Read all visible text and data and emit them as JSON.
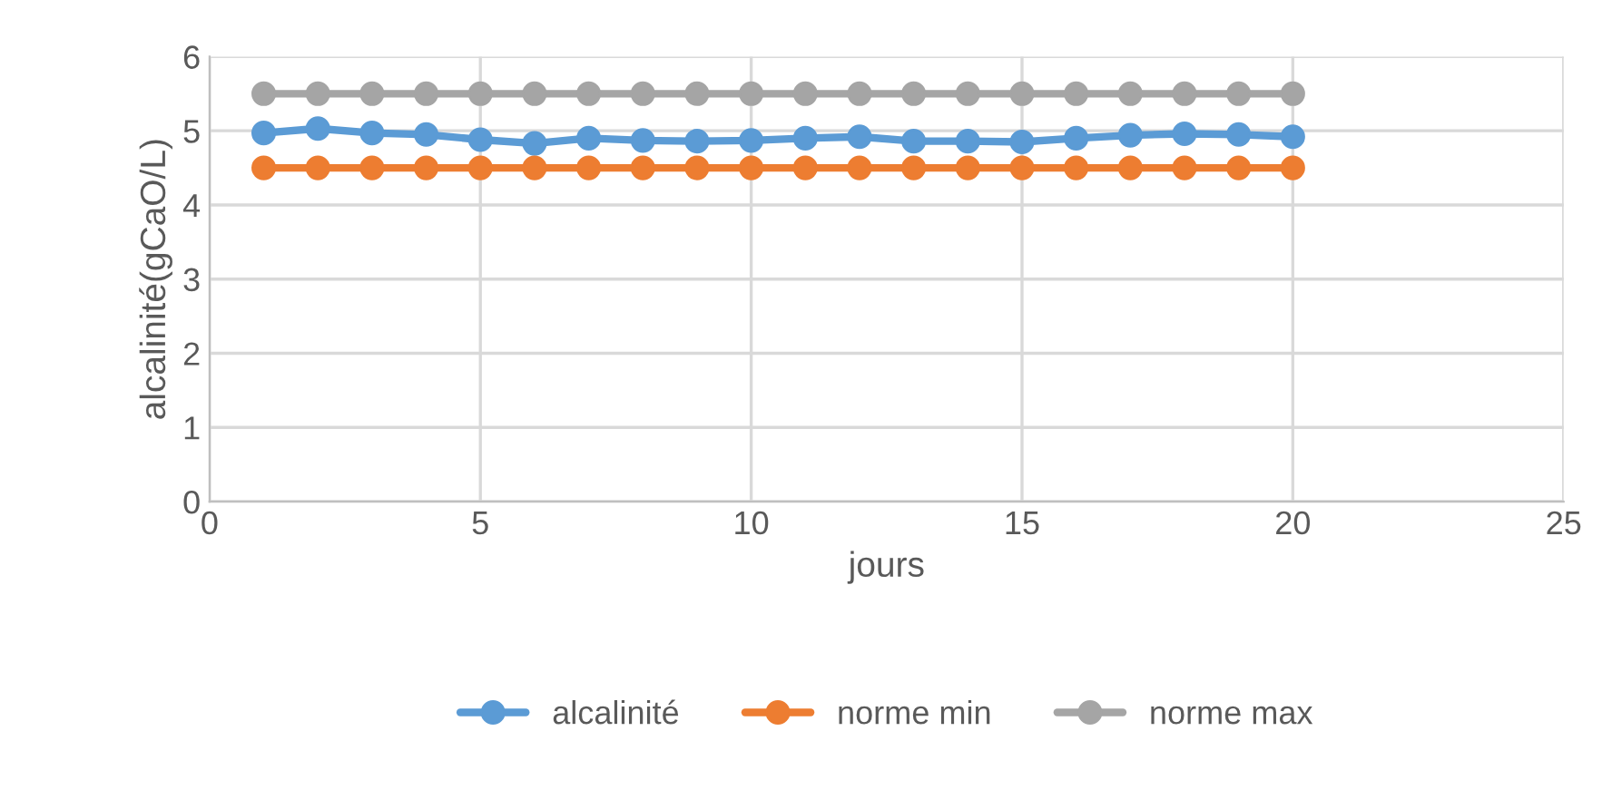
{
  "chart_data": {
    "type": "line",
    "xlabel": "jours",
    "ylabel": "alcalinité(gCaO/L)",
    "x": [
      1,
      2,
      3,
      4,
      5,
      6,
      7,
      8,
      9,
      10,
      11,
      12,
      13,
      14,
      15,
      16,
      17,
      18,
      19,
      20
    ],
    "series": [
      {
        "name": "alcalinité",
        "color": "#5b9bd5",
        "values": [
          4.97,
          5.03,
          4.97,
          4.95,
          4.88,
          4.83,
          4.9,
          4.87,
          4.86,
          4.87,
          4.9,
          4.92,
          4.86,
          4.86,
          4.85,
          4.9,
          4.94,
          4.96,
          4.95,
          4.92
        ]
      },
      {
        "name": "norme min",
        "color": "#ed7d31",
        "values": [
          4.5,
          4.5,
          4.5,
          4.5,
          4.5,
          4.5,
          4.5,
          4.5,
          4.5,
          4.5,
          4.5,
          4.5,
          4.5,
          4.5,
          4.5,
          4.5,
          4.5,
          4.5,
          4.5,
          4.5
        ]
      },
      {
        "name": "norme max",
        "color": "#a5a5a5",
        "values": [
          5.5,
          5.5,
          5.5,
          5.5,
          5.5,
          5.5,
          5.5,
          5.5,
          5.5,
          5.5,
          5.5,
          5.5,
          5.5,
          5.5,
          5.5,
          5.5,
          5.5,
          5.5,
          5.5,
          5.5
        ]
      }
    ],
    "xlim": [
      0,
      25
    ],
    "xticks": [
      0,
      5,
      10,
      15,
      20,
      25
    ],
    "ylim": [
      0,
      6
    ],
    "yticks": [
      0,
      1,
      2,
      3,
      4,
      5,
      6
    ],
    "grid": true,
    "legend": "bottom",
    "marker": "circle",
    "line_style": "solid"
  }
}
